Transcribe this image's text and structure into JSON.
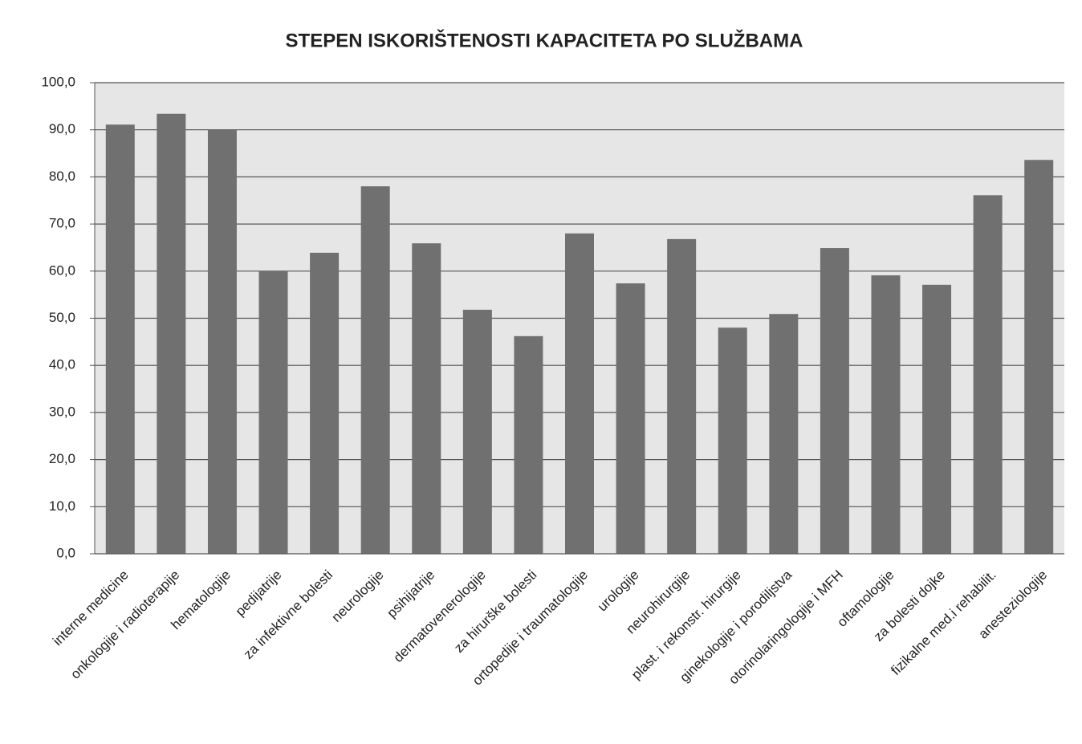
{
  "chart_data": {
    "type": "bar",
    "title": "STEPEN ISKORIŠTENOSTI KAPACITETA PO SLUŽBAMA",
    "categories": [
      "interne medicine",
      "onkologije i radioterapije",
      "hematologije",
      "pedijatrije",
      "za infektivne bolesti",
      "neurologije",
      "psihijatrije",
      "dermatovenerologije",
      "za hirurške bolesti",
      "ortopedije i traumatologije",
      "urologije",
      "neurohirurgije",
      "plast. i rekonstr. hirurgije",
      "ginekologije i porodiljstva",
      "otorinolaringologije i MFH",
      "oftamologije",
      "za bolesti dojke",
      "fizikalne med.i rehabilit.",
      "anesteziologije"
    ],
    "values": [
      91.1,
      93.4,
      90.0,
      60.0,
      63.9,
      78.0,
      65.9,
      51.8,
      46.2,
      68.0,
      57.4,
      66.8,
      48.0,
      50.9,
      64.9,
      59.1,
      57.1,
      76.1,
      83.6
    ],
    "color": "#707070",
    "ylim": [
      0,
      100
    ],
    "yticks": [
      {
        "value": 0,
        "label": "0,0"
      },
      {
        "value": 10,
        "label": "10,0"
      },
      {
        "value": 20,
        "label": "20,0"
      },
      {
        "value": 30,
        "label": "30,0"
      },
      {
        "value": 40,
        "label": "40,0"
      },
      {
        "value": 50,
        "label": "50,0"
      },
      {
        "value": 60,
        "label": "60,0"
      },
      {
        "value": 70,
        "label": "70,0"
      },
      {
        "value": 80,
        "label": "80,0"
      },
      {
        "value": 90,
        "label": "90,0"
      },
      {
        "value": 100,
        "label": "100,0"
      }
    ],
    "grid": true
  }
}
